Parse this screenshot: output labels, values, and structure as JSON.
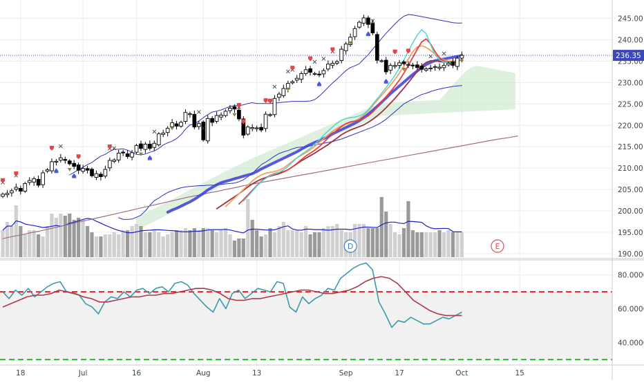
{
  "colors": {
    "candle_up": "#ffffff",
    "candle_down": "#000000",
    "ema_fast": "#4fd6d6",
    "ema_2": "#e8403a",
    "ema_3": "#f0a060",
    "ema_4": "#a0303a",
    "ema_slow": "#3c3cd8",
    "bollinger": "#3030c0",
    "sma_long": "#a07080",
    "cloud": "#c8e6c8",
    "volume": "#b0b0b0",
    "volume_avg": "#2020c0",
    "rsi": "#3a9aa8",
    "rsi_signal": "#a83a4a",
    "rsi_upper": "#e82020",
    "rsi_lower": "#20c020",
    "price_line": "#3050c0",
    "grid": "#ececec",
    "axis_text": "#444444"
  },
  "chart_data": [
    {
      "type": "candlestick",
      "panel": "price",
      "ylim": [
        189.5,
        248
      ],
      "yticks": [
        "245.00",
        "240.00",
        "235.00",
        "230.00",
        "225.00",
        "220.00",
        "215.00",
        "210.00",
        "205.00",
        "200.00",
        "195.00",
        "190.00"
      ],
      "ytick_values": [
        245,
        240,
        235,
        230,
        225,
        220,
        215,
        210,
        205,
        200,
        195,
        190
      ],
      "last_price_label": "236.35",
      "last_price": 236.35,
      "xticks": [
        "18",
        "Jul",
        "16",
        "Aug",
        "13",
        "Sep",
        "17",
        "Oct",
        "15"
      ],
      "xtick_index": [
        4,
        18,
        30,
        45,
        57,
        77,
        89,
        103,
        116
      ],
      "n_bars": 104,
      "close": [
        203.9,
        204.1,
        204.7,
        205.5,
        204.6,
        206.4,
        207.1,
        207.5,
        206.0,
        208.9,
        209.6,
        211.5,
        211.6,
        212.4,
        211.8,
        211.0,
        210.4,
        209.5,
        209.9,
        209.5,
        208.2,
        208.7,
        208.0,
        209.7,
        211.8,
        211.9,
        213.5,
        213.7,
        212.7,
        213.6,
        215.3,
        214.6,
        215.6,
        214.6,
        215.8,
        218.0,
        218.2,
        219.3,
        220.6,
        219.8,
        220.7,
        223.0,
        222.7,
        219.6,
        220.4,
        216.6,
        221.6,
        220.7,
        222.3,
        222.4,
        223.3,
        224.0,
        223.8,
        221.5,
        217.7,
        219.6,
        219.5,
        219.4,
        218.9,
        222.6,
        222.5,
        226.3,
        227.3,
        228.6,
        229.8,
        230.2,
        231.0,
        232.1,
        233.0,
        232.4,
        232.1,
        231.9,
        232.8,
        234.3,
        234.5,
        234.9,
        237.8,
        239.0,
        240.6,
        242.6,
        244.1,
        245.1,
        243.6,
        241.6,
        235.2,
        235.1,
        232.5,
        234.0,
        234.0,
        234.6,
        234.4,
        234.2,
        234.0,
        233.5,
        233.1,
        233.2,
        233.4,
        233.7,
        233.6,
        234.0,
        234.5,
        234.0,
        235.7,
        236.35
      ],
      "series": [
        {
          "name": "",
          "style": "bollinger_upper",
          "values": [
            208.4,
            209.0,
            209.6,
            210.2,
            210.8,
            211.3,
            212.1,
            212.8,
            213.2,
            213.9,
            214.4,
            214.4,
            214.5,
            214.2,
            213.7,
            213.2,
            213.1,
            213.3,
            213.7,
            214.0,
            214.6,
            215.4,
            215.9,
            216.3,
            216.9,
            217.8,
            219.1,
            220.1,
            220.3,
            221.0,
            221.8,
            222.5,
            223.1,
            223.3,
            223.6,
            224.0,
            224.4,
            224.6,
            224.6,
            224.8,
            225.1,
            225.3,
            225.1,
            225.1,
            225.1,
            225.1,
            225.2,
            225.3,
            225.4,
            225.5,
            225.6,
            225.6,
            225.6,
            225.6,
            225.7,
            226.0,
            226.8,
            227.8,
            228.9,
            229.9,
            230.8,
            231.8,
            232.8,
            233.5,
            233.9,
            234.4,
            235.5,
            236.5,
            237.8,
            239.0,
            240.3,
            241.5,
            242.6,
            243.7,
            244.7,
            245.5,
            245.9,
            245.8,
            245.6,
            245.4,
            245.2,
            245.0,
            244.8,
            244.6,
            244.4,
            244.2,
            244.0,
            243.9,
            243.9
          ]
        },
        {
          "name": "",
          "style": "bollinger_lower",
          "values": [
            198.4,
            198.0,
            198.0,
            198.1,
            198.5,
            199.0,
            200.0,
            201.3,
            202.4,
            203.0,
            203.7,
            204.3,
            204.7,
            205.1,
            205.4,
            205.6,
            205.7,
            205.8,
            205.9,
            205.9,
            206.0,
            206.0,
            206.1,
            206.2,
            206.3,
            206.4,
            206.5,
            206.8,
            207.3,
            208.0,
            208.8,
            209.8,
            210.8,
            211.4,
            212.1,
            212.8,
            213.4,
            213.8,
            214.1,
            214.5,
            214.8,
            214.9,
            215.0,
            215.2,
            215.4,
            215.6,
            215.8,
            216.0,
            216.2,
            216.5,
            216.8,
            217.2,
            217.6,
            218.0,
            218.4,
            218.8,
            219.2,
            219.6,
            220.1,
            220.7,
            221.4,
            222.3,
            223.2,
            224.1,
            225.0,
            225.6,
            226.1,
            226.7,
            227.2,
            227.5,
            227.9,
            228.2,
            228.5,
            228.7,
            228.9,
            229.1,
            229.2,
            229.3
          ]
        },
        {
          "name": "",
          "style": "sma_long",
          "values": [
            193.5,
            194.0,
            194.4,
            194.9,
            195.3,
            195.8,
            196.3,
            196.8,
            197.3,
            197.8,
            198.3,
            198.8,
            199.3,
            199.8,
            200.3,
            200.8,
            201.3,
            201.8,
            202.3,
            202.8,
            203.3,
            203.7,
            204.2,
            204.6,
            205.1,
            205.5,
            206.0,
            206.4,
            206.8,
            207.2,
            207.6,
            208.0,
            208.4,
            208.8,
            209.2,
            209.6,
            210.0,
            210.4,
            210.8,
            211.2,
            211.6,
            212.0,
            212.4,
            212.8,
            213.2,
            213.6,
            214.0,
            214.4,
            214.8,
            215.2,
            215.6,
            216.0,
            216.4,
            216.8,
            217.1,
            217.5
          ]
        },
        {
          "name": "",
          "style": "ema_slow",
          "values": [
            199.7,
            200.2,
            200.6,
            201.1,
            201.6,
            202.1,
            202.7,
            203.4,
            204.1,
            204.9,
            205.5,
            206.1,
            206.6,
            206.9,
            207.2,
            207.5,
            207.8,
            208.1,
            208.4,
            208.7,
            209.2,
            209.8,
            210.3,
            210.8,
            211.3,
            211.8,
            212.3,
            212.8,
            213.3,
            213.8,
            214.4,
            215.0,
            215.5,
            216.0,
            216.4,
            216.9,
            217.4,
            218.0,
            218.5,
            219.0,
            219.5,
            220.0,
            220.5,
            221.1,
            221.8,
            222.6,
            223.5,
            224.4,
            225.4,
            226.4,
            227.4,
            228.3,
            229.2,
            230.1,
            231.0,
            231.9,
            232.7,
            233.5,
            234.2,
            234.7,
            235.1,
            235.3,
            235.5,
            235.7,
            235.9,
            236.1,
            236.3
          ]
        },
        {
          "name": "",
          "style": "ema_4",
          "values": [
            200.5,
            201.2,
            201.9,
            202.6,
            203.3,
            204.0,
            204.8,
            205.6,
            206.3,
            206.9,
            207.4,
            207.8,
            208.1,
            208.4,
            208.7,
            209.1,
            209.6,
            210.3,
            211.0,
            211.7,
            212.3,
            212.9,
            213.5,
            214.2,
            214.8,
            215.5,
            216.3,
            217.0,
            217.8,
            218.4,
            218.9,
            219.3,
            219.7,
            220.1,
            220.7,
            221.4,
            222.2,
            223.1,
            224.1,
            225.2,
            226.3,
            227.5,
            228.7,
            230.0,
            231.3,
            232.6,
            233.9,
            234.7,
            235.1,
            235.1,
            234.9,
            234.8,
            234.8,
            234.9,
            235.1,
            235.3
          ]
        },
        {
          "name": "",
          "style": "ema_3",
          "values": [
            201.0,
            202.0,
            203.0,
            204.0,
            205.0,
            206.0,
            207.0,
            207.8,
            208.4,
            208.8,
            209.0,
            209.2,
            209.5,
            210.0,
            210.8,
            211.6,
            212.4,
            213.0,
            213.6,
            214.3,
            215.1,
            216.0,
            216.9,
            217.8,
            218.6,
            219.3,
            219.9,
            220.3,
            220.6,
            221.0,
            221.6,
            222.4,
            223.4,
            224.6,
            225.8,
            227.0,
            228.2,
            229.4,
            230.7,
            232.2,
            233.8,
            235.5,
            237.2,
            238.3,
            238.6,
            238.2,
            237.5,
            236.6,
            235.8,
            235.3,
            235.0,
            235.0,
            235.2,
            235.4
          ]
        },
        {
          "name": "",
          "style": "ema_2",
          "values": [
            201.6,
            202.6,
            203.7,
            204.8,
            205.9,
            206.9,
            207.7,
            208.3,
            208.7,
            209.0,
            209.2,
            209.6,
            210.3,
            211.1,
            212.0,
            212.8,
            213.5,
            214.2,
            215.0,
            216.0,
            217.0,
            218.0,
            218.9,
            219.7,
            220.4,
            220.8,
            221.0,
            221.2,
            221.6,
            222.2,
            223.1,
            224.3,
            225.5,
            226.7,
            227.9,
            229.2,
            230.6,
            232.2,
            234.0,
            235.9,
            237.8,
            239.5,
            240.2,
            239.0,
            237.2,
            235.8,
            235.0,
            234.6,
            234.6,
            234.9,
            235.4
          ]
        },
        {
          "name": "",
          "style": "ema_fast",
          "values": [
            202.3,
            203.4,
            204.6,
            205.8,
            206.8,
            207.6,
            208.2,
            208.6,
            209.0,
            209.6,
            210.4,
            211.4,
            212.4,
            213.2,
            213.9,
            214.7,
            215.6,
            216.6,
            217.7,
            218.7,
            219.6,
            220.5,
            221.2,
            221.6,
            221.8,
            221.9,
            222.2,
            222.7,
            223.6,
            224.9,
            226.2,
            227.5,
            228.8,
            230.2,
            231.7,
            233.4,
            235.3,
            237.3,
            239.3,
            241.1,
            242.4,
            241.4,
            238.8,
            236.5,
            235.3,
            234.8,
            234.6,
            234.7,
            235.0,
            235.5
          ]
        }
      ]
    },
    {
      "type": "bar",
      "panel": "volume",
      "values": [
        6.5,
        8.5,
        7.5,
        12.5,
        7.5,
        5.5,
        6.5,
        6.5,
        5.5,
        5,
        7.5,
        10.5,
        9.5,
        10.5,
        10,
        10.5,
        9,
        9.5,
        9,
        7.5,
        6,
        5,
        5,
        5.5,
        5.5,
        6,
        5.5,
        6.5,
        6.5,
        7.5,
        8,
        7.5,
        6,
        6,
        6.5,
        6,
        5,
        5.5,
        6,
        6.5,
        6.5,
        7,
        6.5,
        7,
        6.5,
        7,
        7,
        6.5,
        6,
        6.5,
        7,
        5.5,
        4,
        4.5,
        4.5,
        14,
        9,
        6.5,
        5,
        5.5,
        7,
        6,
        7.5,
        8.5,
        6.5,
        6.5,
        6.5,
        6,
        7.5,
        5.5,
        6,
        6,
        7,
        7.5,
        7.5,
        8,
        6.5,
        6,
        6,
        8,
        8,
        8,
        7,
        7,
        7,
        14.5,
        11,
        8,
        6,
        5.5,
        7,
        13.5,
        6.5,
        6,
        6,
        6,
        6,
        6,
        6.5,
        6,
        6.5,
        6,
        6,
        6
      ]
    },
    {
      "type": "line",
      "panel": "rsi",
      "ylim": [
        28,
        88
      ],
      "yticks": [
        "80.0000",
        "60.0000",
        "40.0000"
      ],
      "ytick_values": [
        80,
        60,
        40
      ],
      "upper_band": 70,
      "lower_band": 30,
      "series": [
        {
          "name": "",
          "style": "rsi",
          "values": [
            70,
            66,
            71,
            68,
            72,
            67,
            70,
            73,
            75,
            76,
            70,
            69,
            68,
            63,
            61,
            57,
            64,
            67,
            66,
            70,
            67,
            71,
            72,
            69,
            72,
            73,
            70,
            75,
            76,
            74,
            69,
            65,
            61,
            58,
            66,
            60,
            69,
            71,
            66,
            69,
            72,
            71,
            70,
            76,
            75,
            61,
            58,
            67,
            63,
            66,
            68,
            72,
            71,
            78,
            81,
            84,
            86,
            87,
            83,
            64,
            57,
            49,
            53,
            52,
            55,
            53,
            51,
            51,
            53,
            55,
            54,
            56,
            58
          ]
        },
        {
          "name": "",
          "style": "rsi_signal",
          "values": [
            61,
            63,
            65,
            67,
            68,
            68,
            69,
            71,
            70,
            69,
            67,
            66,
            64,
            64,
            65,
            66,
            67,
            67,
            68,
            68,
            69,
            69,
            70,
            71,
            72,
            72,
            71,
            69,
            66,
            65,
            65,
            66,
            66,
            67,
            68,
            69,
            70,
            71,
            71,
            70,
            69,
            69,
            70,
            71,
            73,
            76,
            78,
            79,
            78,
            75,
            70,
            65,
            62,
            59,
            57,
            56,
            56,
            56
          ]
        }
      ]
    }
  ],
  "annotations": {
    "dividend_label": "D",
    "earnings_label": "E",
    "dividend_index": 78,
    "earnings_index": 111,
    "cross_marks": [
      0,
      3,
      13,
      24,
      25,
      34,
      44,
      45,
      53,
      54,
      61,
      64,
      65,
      70,
      72,
      74,
      83,
      96,
      99
    ],
    "red_flags": [
      0,
      3,
      11,
      17,
      24,
      53,
      54,
      59,
      60,
      65,
      69,
      74,
      88,
      91
    ],
    "blue_drops": [
      12,
      16,
      33,
      71,
      82,
      86
    ],
    "olive_triangles": [
      15,
      31,
      38,
      52,
      64,
      78,
      90,
      103
    ]
  }
}
